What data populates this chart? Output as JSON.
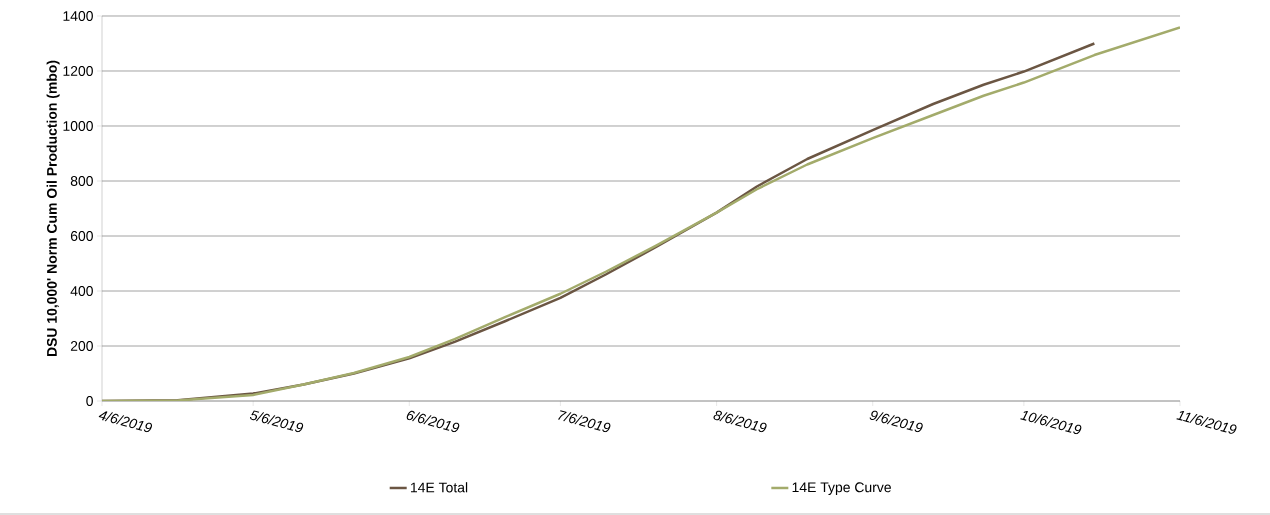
{
  "chart_data": {
    "type": "line",
    "ylabel": "DSU 10,000' Norm Cum Oil Production (mbo)",
    "xlim": [
      "2019-04-06",
      "2019-11-06"
    ],
    "xticks": [
      {
        "value": "2019-04-06",
        "label": "4/6/2019"
      },
      {
        "value": "2019-05-06",
        "label": "5/6/2019"
      },
      {
        "value": "2019-06-06",
        "label": "6/6/2019"
      },
      {
        "value": "2019-07-06",
        "label": "7/6/2019"
      },
      {
        "value": "2019-08-06",
        "label": "8/6/2019"
      },
      {
        "value": "2019-09-06",
        "label": "9/6/2019"
      },
      {
        "value": "2019-10-06",
        "label": "10/6/2019"
      },
      {
        "value": "2019-11-06",
        "label": "11/6/2019"
      }
    ],
    "ylim": [
      0,
      1400
    ],
    "yticks": [
      0,
      200,
      400,
      600,
      800,
      1000,
      1200,
      1400
    ],
    "grid": "y",
    "legend": "bottom",
    "marker": "none",
    "line_style": "solid",
    "series": [
      {
        "name": "14E Total",
        "color": "#6b5643",
        "x": [
          "2019-04-06",
          "2019-04-21",
          "2019-05-06",
          "2019-05-16",
          "2019-05-26",
          "2019-06-06",
          "2019-06-15",
          "2019-06-25",
          "2019-07-06",
          "2019-07-15",
          "2019-07-25",
          "2019-08-06",
          "2019-08-14",
          "2019-08-24",
          "2019-09-06",
          "2019-09-18",
          "2019-09-28",
          "2019-10-06",
          "2019-10-20"
        ],
        "values": [
          0,
          3,
          27,
          60,
          100,
          155,
          215,
          290,
          375,
          460,
          560,
          685,
          780,
          880,
          985,
          1080,
          1150,
          1198,
          1300
        ]
      },
      {
        "name": "14E Type Curve",
        "color": "#a3ab6b",
        "x": [
          "2019-04-06",
          "2019-04-21",
          "2019-05-06",
          "2019-05-16",
          "2019-05-26",
          "2019-06-06",
          "2019-06-15",
          "2019-06-25",
          "2019-07-06",
          "2019-07-15",
          "2019-07-25",
          "2019-08-06",
          "2019-08-14",
          "2019-08-24",
          "2019-09-06",
          "2019-09-18",
          "2019-09-28",
          "2019-10-06",
          "2019-10-20",
          "2019-11-06"
        ],
        "values": [
          0,
          2,
          22,
          60,
          102,
          160,
          225,
          305,
          390,
          470,
          565,
          685,
          770,
          860,
          956,
          1040,
          1110,
          1158,
          1258,
          1358
        ]
      }
    ]
  }
}
